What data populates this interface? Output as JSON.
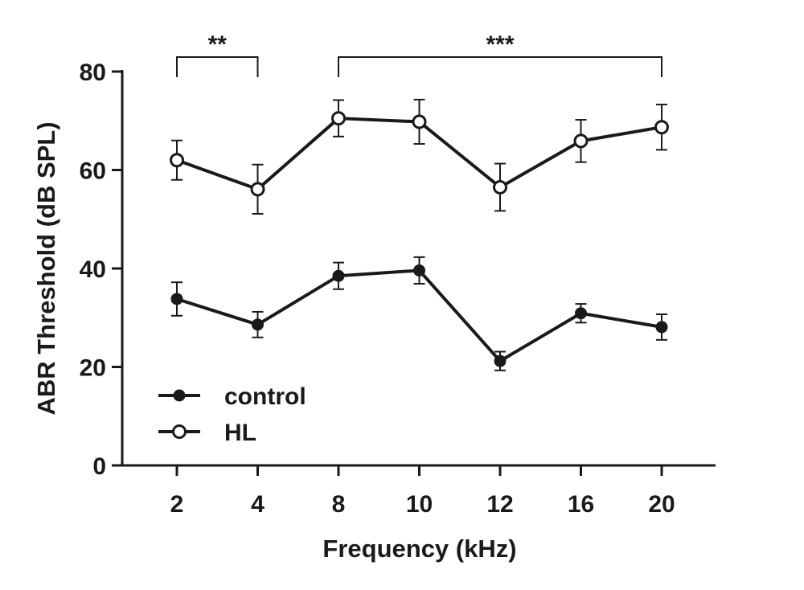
{
  "chart_data": {
    "type": "line",
    "categories": [
      "2",
      "4",
      "8",
      "10",
      "12",
      "16",
      "20"
    ],
    "xlabel": "Frequency (kHz)",
    "ylabel": "ABR Threshold (dB SPL)",
    "ylim": [
      0,
      80
    ],
    "yticks": [
      "0",
      "20",
      "40",
      "60",
      "80"
    ],
    "grid": false,
    "legend_position": "bottom-left",
    "series": [
      {
        "name": "control",
        "marker": "filled-circle",
        "color": "#1a1a1a",
        "values": [
          33.8,
          28.6,
          38.5,
          39.6,
          21.2,
          30.9,
          28.1
        ],
        "error": [
          3.4,
          2.6,
          2.7,
          2.7,
          1.9,
          1.9,
          2.6
        ]
      },
      {
        "name": "HL",
        "marker": "open-circle",
        "color": "#1a1a1a",
        "values": [
          62.0,
          56.1,
          70.5,
          69.8,
          56.5,
          65.9,
          68.7
        ],
        "error": [
          4.0,
          5.0,
          3.7,
          4.5,
          4.8,
          4.3,
          4.6
        ]
      }
    ],
    "annotations": [
      {
        "text": "**",
        "from": "2",
        "to": "4"
      },
      {
        "text": "***",
        "from": "8",
        "to": "20"
      }
    ]
  }
}
